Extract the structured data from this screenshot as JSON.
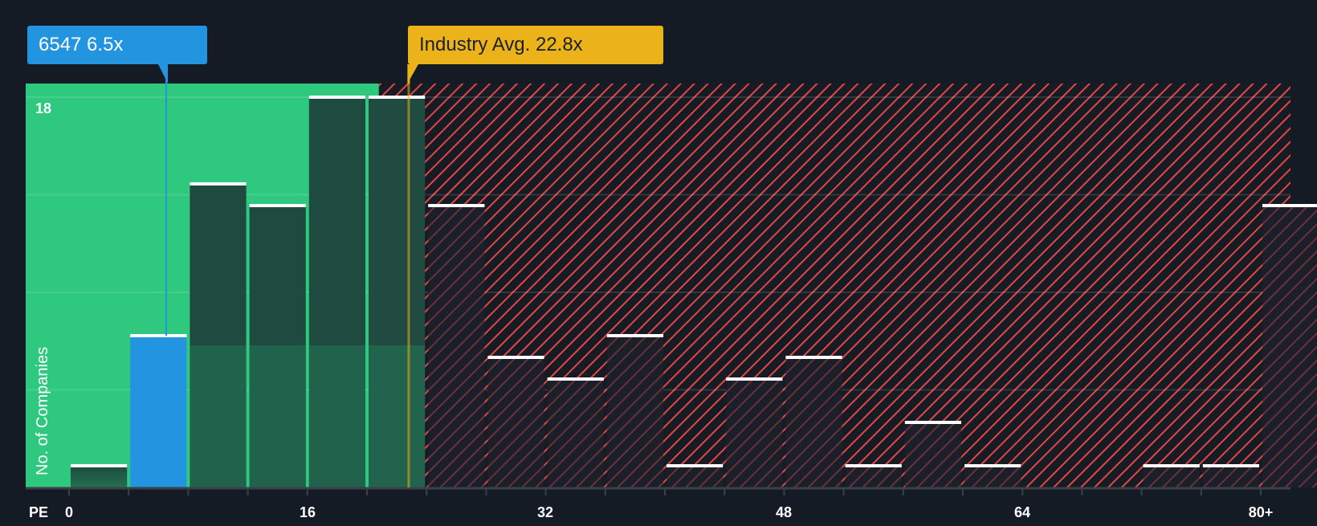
{
  "callouts": {
    "company": "6547 6.5x",
    "industry": "Industry Avg. 22.8x"
  },
  "axes": {
    "ylabel": "No. of Companies",
    "xlabel": "PE",
    "ytick_top": "18",
    "xticks": [
      "0",
      "16",
      "32",
      "48",
      "64",
      "80+"
    ]
  },
  "colors": {
    "background": "#151b24",
    "undervalued_zone": "#2ec87f",
    "overvalued_hatch": "#e04848",
    "company_bar": "#2394e0",
    "industry_line": "#ecb21a",
    "bar_dark": "#1f4a3f",
    "bar_cap": "#ffffff"
  },
  "chart_data": {
    "type": "bar",
    "title": "",
    "xlabel": "PE",
    "ylabel": "No. of Companies",
    "categories": [
      "0-4",
      "4-8",
      "8-12",
      "12-16",
      "16-20",
      "20-24",
      "24-28",
      "28-32",
      "32-36",
      "36-40",
      "40-44",
      "44-48",
      "48-52",
      "52-56",
      "56-60",
      "60-64",
      "64-68",
      "68-72",
      "72-76",
      "76-80",
      "80+"
    ],
    "values": [
      1,
      7,
      14,
      13,
      18,
      18,
      13,
      6,
      5,
      7,
      1,
      5,
      6,
      1,
      3,
      1,
      0,
      0,
      1,
      1,
      13
    ],
    "ylim": [
      0,
      18
    ],
    "yticks_labeled": [
      18
    ],
    "xticks": [
      0,
      16,
      32,
      48,
      64,
      "80+"
    ],
    "grid": true,
    "highlight": {
      "label": "6547",
      "value": 6.5,
      "bin": "4-8"
    },
    "reference_line": {
      "label": "Industry Avg.",
      "value": 22.8
    },
    "zones": [
      {
        "name": "undervalued",
        "from": 0,
        "to": 22.8,
        "color": "#2ec87f"
      },
      {
        "name": "overvalued",
        "from": 22.8,
        "to": "80+",
        "color": "#e04848",
        "pattern": "diagonal-hatch"
      }
    ],
    "legend": "none"
  }
}
